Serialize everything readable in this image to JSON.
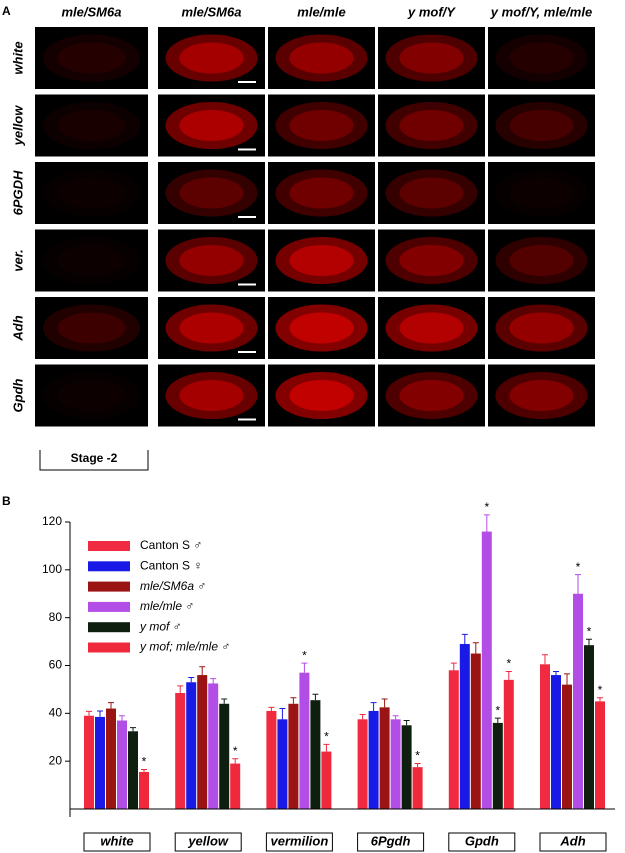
{
  "panel_a": {
    "label": "A",
    "columns": [
      "mle/SM6a",
      "mle/SM6a",
      "mle/mle",
      "y mof/Y",
      "y mof/Y, mle/mle"
    ],
    "rows": [
      "white",
      "yellow",
      "6PGDH",
      "ver.",
      "Adh",
      "Gpdh"
    ],
    "stage": "Stage -2"
  },
  "chart_data": {
    "type": "bar",
    "panel_label": "B",
    "categories": [
      "white",
      "yellow",
      "vermilion",
      "6Pgdh",
      "Gpdh",
      "Adh"
    ],
    "series": [
      {
        "name": "Canton S ♂",
        "color": "#f02a40",
        "values": [
          39,
          48.5,
          41,
          37.5,
          58,
          60.5
        ],
        "errors": [
          1.8,
          3,
          1.5,
          2,
          3,
          4
        ],
        "significance": [
          null,
          null,
          null,
          null,
          null,
          null
        ]
      },
      {
        "name": "Canton S ♀",
        "color": "#1a1ae6",
        "values": [
          38.5,
          53,
          37.5,
          41,
          69,
          56
        ],
        "errors": [
          2.5,
          2,
          4.5,
          3.5,
          4,
          1.5
        ],
        "significance": [
          null,
          null,
          null,
          null,
          null,
          null
        ]
      },
      {
        "name": "mle/SM6a ♂",
        "color": "#9a1414",
        "values": [
          42,
          56,
          44,
          42.5,
          65,
          52
        ],
        "errors": [
          2.5,
          3.5,
          2.5,
          3.5,
          4.5,
          4.5
        ],
        "significance": [
          null,
          null,
          null,
          null,
          null,
          null
        ]
      },
      {
        "name": "mle/mle ♂",
        "color": "#b24ee6",
        "values": [
          37,
          52.5,
          57,
          37.5,
          116,
          90
        ],
        "errors": [
          2,
          2,
          4,
          1.5,
          7,
          8
        ],
        "significance": [
          null,
          null,
          "*",
          null,
          "*",
          "*"
        ]
      },
      {
        "name": "y  mof ♂",
        "color": "#0f1f0f",
        "values": [
          32.5,
          44,
          45.5,
          35,
          36,
          68.5
        ],
        "errors": [
          1.5,
          2,
          2.5,
          2,
          2,
          2.5
        ],
        "significance": [
          null,
          null,
          null,
          null,
          "*",
          "*"
        ]
      },
      {
        "name": "y  mof; mle/mle ♂",
        "color": "#f0283c",
        "values": [
          15.5,
          19,
          24,
          17.5,
          54,
          45
        ],
        "errors": [
          1,
          2,
          3,
          1.5,
          3.5,
          1.5
        ],
        "significance": [
          "*",
          "*",
          "*",
          "*",
          "*",
          "*"
        ]
      }
    ],
    "ylim": [
      0,
      120
    ],
    "yticks": [
      20,
      40,
      60,
      80,
      100,
      120
    ],
    "legend": "upper-left"
  }
}
